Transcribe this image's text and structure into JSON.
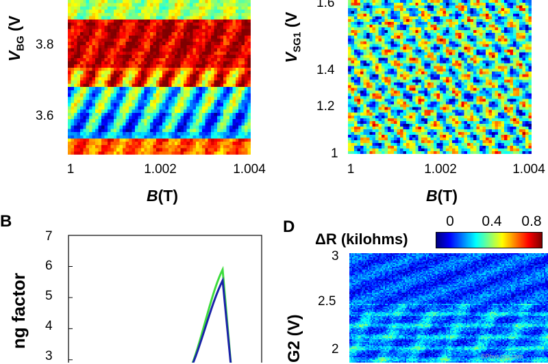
{
  "chart_data": [
    {
      "id": "top-left",
      "type": "heatmap",
      "xlabel_var": "B",
      "xlabel_unit": "(T)",
      "ylabel_var": "V",
      "ylabel_sub": "BG",
      "ylabel_unit": "(V",
      "x_ticks": [
        "1",
        "1.002",
        "1.004"
      ],
      "x_tick_values": [
        1,
        1.002,
        1.004
      ],
      "y_ticks": [
        "3.8",
        "3.6"
      ],
      "y_tick_values": [
        3.8,
        3.6
      ],
      "xlim": [
        1,
        1.004
      ],
      "ylim": [
        3.5,
        3.95
      ],
      "colormap": "jet"
    },
    {
      "id": "top-right",
      "type": "heatmap",
      "xlabel_var": "B",
      "xlabel_unit": "(T)",
      "ylabel_var": "V",
      "ylabel_sub": "SG1",
      "ylabel_unit": "(V",
      "x_ticks": [
        "1",
        "1.002",
        "1.004"
      ],
      "x_tick_values": [
        1,
        1.002,
        1.004
      ],
      "y_ticks": [
        "1.6",
        "1.4",
        "1.2",
        "1"
      ],
      "y_tick_values": [
        1.6,
        1.4,
        1.2,
        1
      ],
      "xlim": [
        1,
        1.004
      ],
      "ylim": [
        1,
        1.65
      ],
      "colormap": "jet"
    },
    {
      "id": "panel-B",
      "panel_label": "B",
      "type": "line",
      "ylabel": "ng factor",
      "y_ticks": [
        "7",
        "6",
        "5",
        "4",
        "3"
      ],
      "y_tick_values": [
        7,
        6,
        5,
        4,
        3
      ],
      "ylim": [
        2.6,
        7
      ],
      "series": [
        {
          "color": "#3ddc3d",
          "peak_y": 5.9
        },
        {
          "color": "#1a22a8",
          "peak_y": 5.55
        }
      ]
    },
    {
      "id": "panel-D",
      "panel_label": "D",
      "type": "heatmap",
      "ylabel": "G2 (V)",
      "y_ticks": [
        "3",
        "2.5",
        "2"
      ],
      "y_tick_values": [
        3,
        2.5,
        2
      ],
      "ylim": [
        1.85,
        3
      ],
      "colorbar": {
        "title": "ΔR (kilohms)",
        "ticks": [
          "0",
          "0.4",
          "0.8"
        ],
        "tick_values": [
          0,
          0.4,
          0.8
        ],
        "range": [
          0,
          0.9
        ]
      },
      "colormap": "jet"
    }
  ],
  "watermark": "©Phys.org.com"
}
